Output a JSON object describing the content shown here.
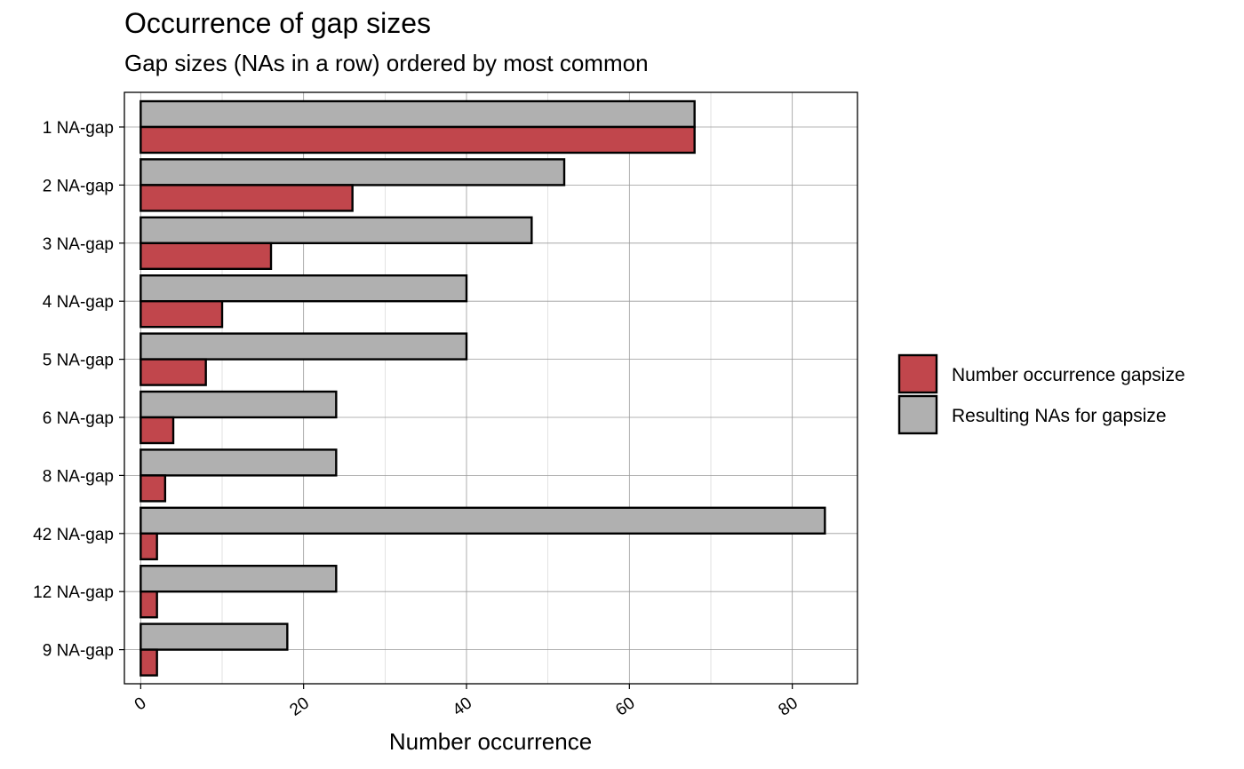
{
  "chart_data": {
    "type": "bar",
    "orientation": "horizontal",
    "title": "Occurrence of gap sizes",
    "subtitle": "Gap sizes (NAs in a row) ordered by most common",
    "xlabel": "Number occurrence",
    "ylabel": "",
    "xlim": [
      -2,
      88
    ],
    "x_ticks": [
      0,
      20,
      40,
      60,
      80
    ],
    "x_tick_labels": [
      "0",
      "20",
      "40",
      "60",
      "80"
    ],
    "grid": true,
    "legend_position": "right",
    "categories": [
      "1 NA-gap",
      "2 NA-gap",
      "3 NA-gap",
      "4 NA-gap",
      "5 NA-gap",
      "6 NA-gap",
      "8 NA-gap",
      "42 NA-gap",
      "12 NA-gap",
      "9 NA-gap"
    ],
    "series": [
      {
        "name": "Number occurrence gapsize",
        "color": "#C1464C",
        "values": [
          68,
          26,
          16,
          10,
          8,
          4,
          3,
          2,
          2,
          2
        ]
      },
      {
        "name": "Resulting NAs for gapsize",
        "color": "#B0B0B0",
        "values": [
          68,
          52,
          48,
          40,
          40,
          24,
          24,
          84,
          24,
          18
        ]
      }
    ]
  }
}
